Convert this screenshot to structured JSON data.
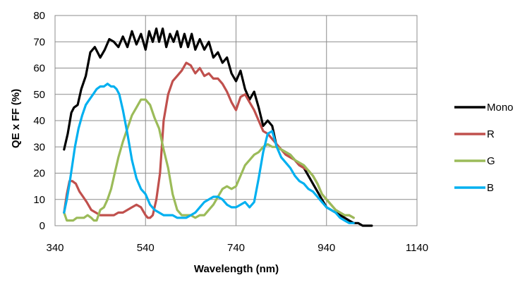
{
  "chart_data": {
    "type": "line",
    "title": "",
    "xlabel": "Wavelength (nm)",
    "ylabel": "QE x FF (%)",
    "xlim": [
      340,
      1140
    ],
    "ylim": [
      0,
      80
    ],
    "xticks": [
      340,
      540,
      740,
      940,
      1140
    ],
    "yticks": [
      0,
      10,
      20,
      30,
      40,
      50,
      60,
      70,
      80
    ],
    "grid": "vertical-and-horizontal",
    "legend": "right",
    "series": [
      {
        "name": "Mono",
        "color": "#000000",
        "x": [
          360,
          368,
          376,
          382,
          390,
          398,
          408,
          418,
          428,
          440,
          450,
          460,
          470,
          480,
          490,
          500,
          510,
          520,
          530,
          540,
          548,
          556,
          564,
          570,
          578,
          586,
          594,
          602,
          610,
          618,
          626,
          634,
          642,
          650,
          660,
          670,
          680,
          690,
          700,
          710,
          720,
          730,
          740,
          750,
          760,
          770,
          780,
          790,
          800,
          810,
          820,
          830,
          840,
          850,
          860,
          870,
          880,
          890,
          900,
          910,
          920,
          930,
          940,
          950,
          960,
          970,
          980,
          990,
          1000,
          1010,
          1020,
          1030,
          1040
        ],
        "y": [
          29,
          35,
          43,
          45,
          46,
          52,
          57,
          66,
          68,
          64,
          67,
          71,
          70,
          68,
          72,
          68,
          74,
          69,
          73,
          67,
          74,
          70,
          75,
          70,
          75,
          68,
          73,
          70,
          74,
          68,
          73,
          68,
          73,
          67,
          71,
          67,
          70,
          64,
          66,
          62,
          64,
          58,
          55,
          59,
          52,
          48,
          51,
          45,
          38,
          40,
          38,
          30,
          29,
          28,
          27,
          25,
          23,
          22,
          19,
          16,
          13,
          10,
          7,
          6,
          5,
          4,
          3,
          2,
          1,
          1,
          0,
          0,
          0
        ]
      },
      {
        "name": "R",
        "color": "#c0504d",
        "x": [
          360,
          366,
          372,
          378,
          386,
          394,
          402,
          410,
          420,
          430,
          440,
          450,
          460,
          470,
          480,
          490,
          500,
          510,
          520,
          530,
          540,
          545,
          550,
          556,
          564,
          572,
          580,
          590,
          600,
          610,
          620,
          630,
          640,
          650,
          660,
          670,
          680,
          690,
          700,
          710,
          720,
          730,
          740,
          750,
          760,
          770,
          780,
          790,
          800,
          810,
          820,
          830,
          840,
          850,
          860,
          870,
          880,
          890,
          900,
          910,
          920,
          930,
          940,
          950,
          960,
          970,
          980,
          990,
          1000
        ],
        "y": [
          5,
          12,
          17,
          17,
          16,
          13,
          11,
          9,
          6,
          5,
          4,
          4,
          4,
          4,
          5,
          5,
          6,
          7,
          8,
          7,
          4,
          3,
          3,
          4,
          10,
          20,
          40,
          50,
          55,
          57,
          59,
          62,
          61,
          58,
          60,
          57,
          58,
          56,
          56,
          54,
          51,
          47,
          44,
          49,
          50,
          47,
          44,
          40,
          36,
          35,
          33,
          31,
          29,
          27,
          26,
          25,
          23,
          22,
          21,
          19,
          16,
          12,
          10,
          8,
          6,
          5,
          4,
          4,
          3
        ]
      },
      {
        "name": "G",
        "color": "#9bbb59",
        "x": [
          360,
          366,
          372,
          380,
          388,
          396,
          404,
          412,
          420,
          426,
          432,
          440,
          448,
          456,
          464,
          472,
          480,
          490,
          500,
          510,
          520,
          530,
          540,
          550,
          560,
          570,
          580,
          590,
          600,
          610,
          620,
          630,
          640,
          650,
          660,
          670,
          680,
          690,
          700,
          710,
          720,
          730,
          740,
          750,
          760,
          770,
          780,
          790,
          800,
          810,
          820,
          830,
          840,
          850,
          860,
          870,
          880,
          890,
          900,
          910,
          920,
          930,
          940,
          950,
          960,
          970,
          980,
          990,
          1000
        ],
        "y": [
          5,
          2,
          2,
          2,
          3,
          3,
          3,
          4,
          3,
          2,
          2,
          6,
          7,
          10,
          14,
          20,
          26,
          32,
          37,
          42,
          45,
          48,
          48,
          46,
          41,
          37,
          29,
          22,
          12,
          6,
          4,
          4,
          4,
          3,
          4,
          4,
          6,
          8,
          11,
          14,
          15,
          14,
          15,
          19,
          23,
          25,
          27,
          28,
          30,
          31,
          30,
          30,
          29,
          28,
          27,
          25,
          24,
          23,
          21,
          19,
          16,
          12,
          10,
          8,
          6,
          5,
          4,
          4,
          3
        ]
      },
      {
        "name": "B",
        "color": "#00b0f0",
        "x": [
          360,
          366,
          372,
          378,
          384,
          392,
          400,
          408,
          416,
          424,
          432,
          440,
          448,
          456,
          464,
          470,
          476,
          482,
          490,
          500,
          510,
          520,
          530,
          540,
          550,
          560,
          570,
          580,
          590,
          600,
          610,
          620,
          630,
          640,
          650,
          660,
          670,
          680,
          690,
          700,
          710,
          720,
          730,
          740,
          750,
          760,
          770,
          780,
          790,
          800,
          810,
          820,
          830,
          840,
          850,
          860,
          870,
          880,
          890,
          900,
          910,
          920,
          930,
          940,
          950,
          960,
          970,
          980,
          990,
          1000
        ],
        "y": [
          5,
          10,
          16,
          23,
          30,
          37,
          42,
          46,
          48,
          50,
          52,
          53,
          53,
          54,
          53,
          53,
          52,
          50,
          44,
          35,
          25,
          18,
          14,
          12,
          8,
          6,
          5,
          4,
          4,
          4,
          3,
          3,
          3,
          4,
          5,
          7,
          9,
          10,
          11,
          11,
          10,
          8,
          7,
          7,
          8,
          9,
          7,
          9,
          18,
          28,
          35,
          36,
          30,
          26,
          24,
          22,
          19,
          17,
          16,
          14,
          13,
          11,
          9,
          7,
          6,
          5,
          3,
          2,
          1,
          1
        ]
      }
    ]
  }
}
